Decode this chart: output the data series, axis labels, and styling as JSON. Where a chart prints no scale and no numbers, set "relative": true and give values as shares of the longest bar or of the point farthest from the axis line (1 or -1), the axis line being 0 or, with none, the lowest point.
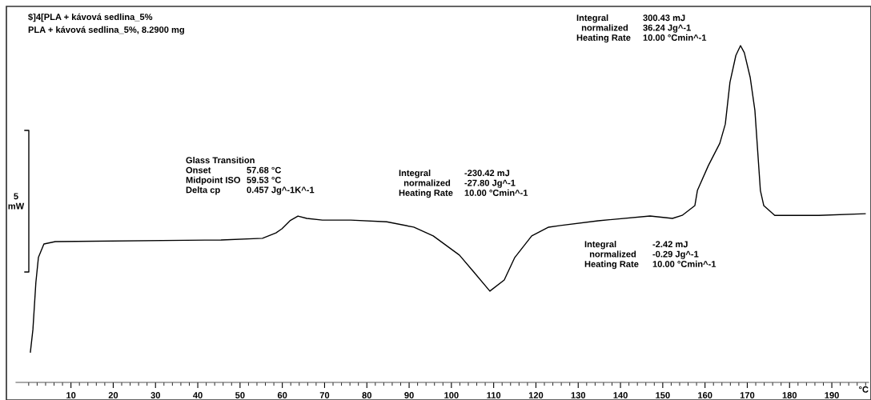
{
  "chart_data": {
    "type": "line",
    "relative": true,
    "title": "$]4[PLA + kávová sedlina_5%",
    "subtitle": "PLA + kávová sedlina_5%, 8.2900 mg",
    "xlabel": "°C",
    "x": [
      0.4,
      1.0,
      1.7,
      2.3,
      3.6,
      6.3,
      45.5,
      55.3,
      58.5,
      59.9,
      61.8,
      63.7,
      65.8,
      69.5,
      76.2,
      84.7,
      91.1,
      95.7,
      101.9,
      105.3,
      109.1,
      112.5,
      115.0,
      119.0,
      123.0,
      125.8,
      134.7,
      147.0,
      152.3,
      154.6,
      157.6,
      158.2,
      160.8,
      163.5,
      164.8,
      165.9,
      167.3,
      168.4,
      169.3,
      170.7,
      171.8,
      173.1,
      173.9,
      176.5,
      186.9,
      197.9
    ],
    "series": [
      {
        "color": "#000000",
        "values": [
          0.09,
          0.157,
          0.297,
          0.371,
          0.411,
          0.418,
          0.423,
          0.428,
          0.444,
          0.456,
          0.48,
          0.494,
          0.487,
          0.482,
          0.482,
          0.477,
          0.461,
          0.435,
          0.378,
          0.328,
          0.271,
          0.304,
          0.371,
          0.435,
          0.461,
          0.466,
          0.48,
          0.494,
          0.487,
          0.496,
          0.525,
          0.57,
          0.644,
          0.71,
          0.767,
          0.891,
          0.971,
          1.0,
          0.979,
          0.905,
          0.808,
          0.57,
          0.525,
          0.496,
          0.496,
          0.501
        ]
      }
    ],
    "xlim": [
      -3,
      198.7
    ],
    "xticks": [
      10,
      20,
      30,
      40,
      50,
      60,
      70,
      80,
      90,
      100,
      110,
      120,
      130,
      140,
      150,
      160,
      170,
      180,
      190
    ],
    "annotations": [
      "5\nmW",
      "Glass Transition\nOnset\nMidpoint ISO\nDelta cp",
      "\n57.68 °C\n59.53 °C\n0.457 Jg^-1K^-1",
      "Integral\n  normalized\nHeating Rate",
      "-230.42 mJ\n-27.80 Jg^-1\n10.00 °Cmin^-1",
      "Integral\n  normalized\nHeating Rate",
      "300.43 mJ\n36.24 Jg^-1\n10.00 °Cmin^-1",
      "Integral\n  normalized\nHeating Rate",
      "-2.42 mJ\n-0.29 Jg^-1\n10.00 °Cmin^-1"
    ],
    "grid": false,
    "legend": false
  }
}
